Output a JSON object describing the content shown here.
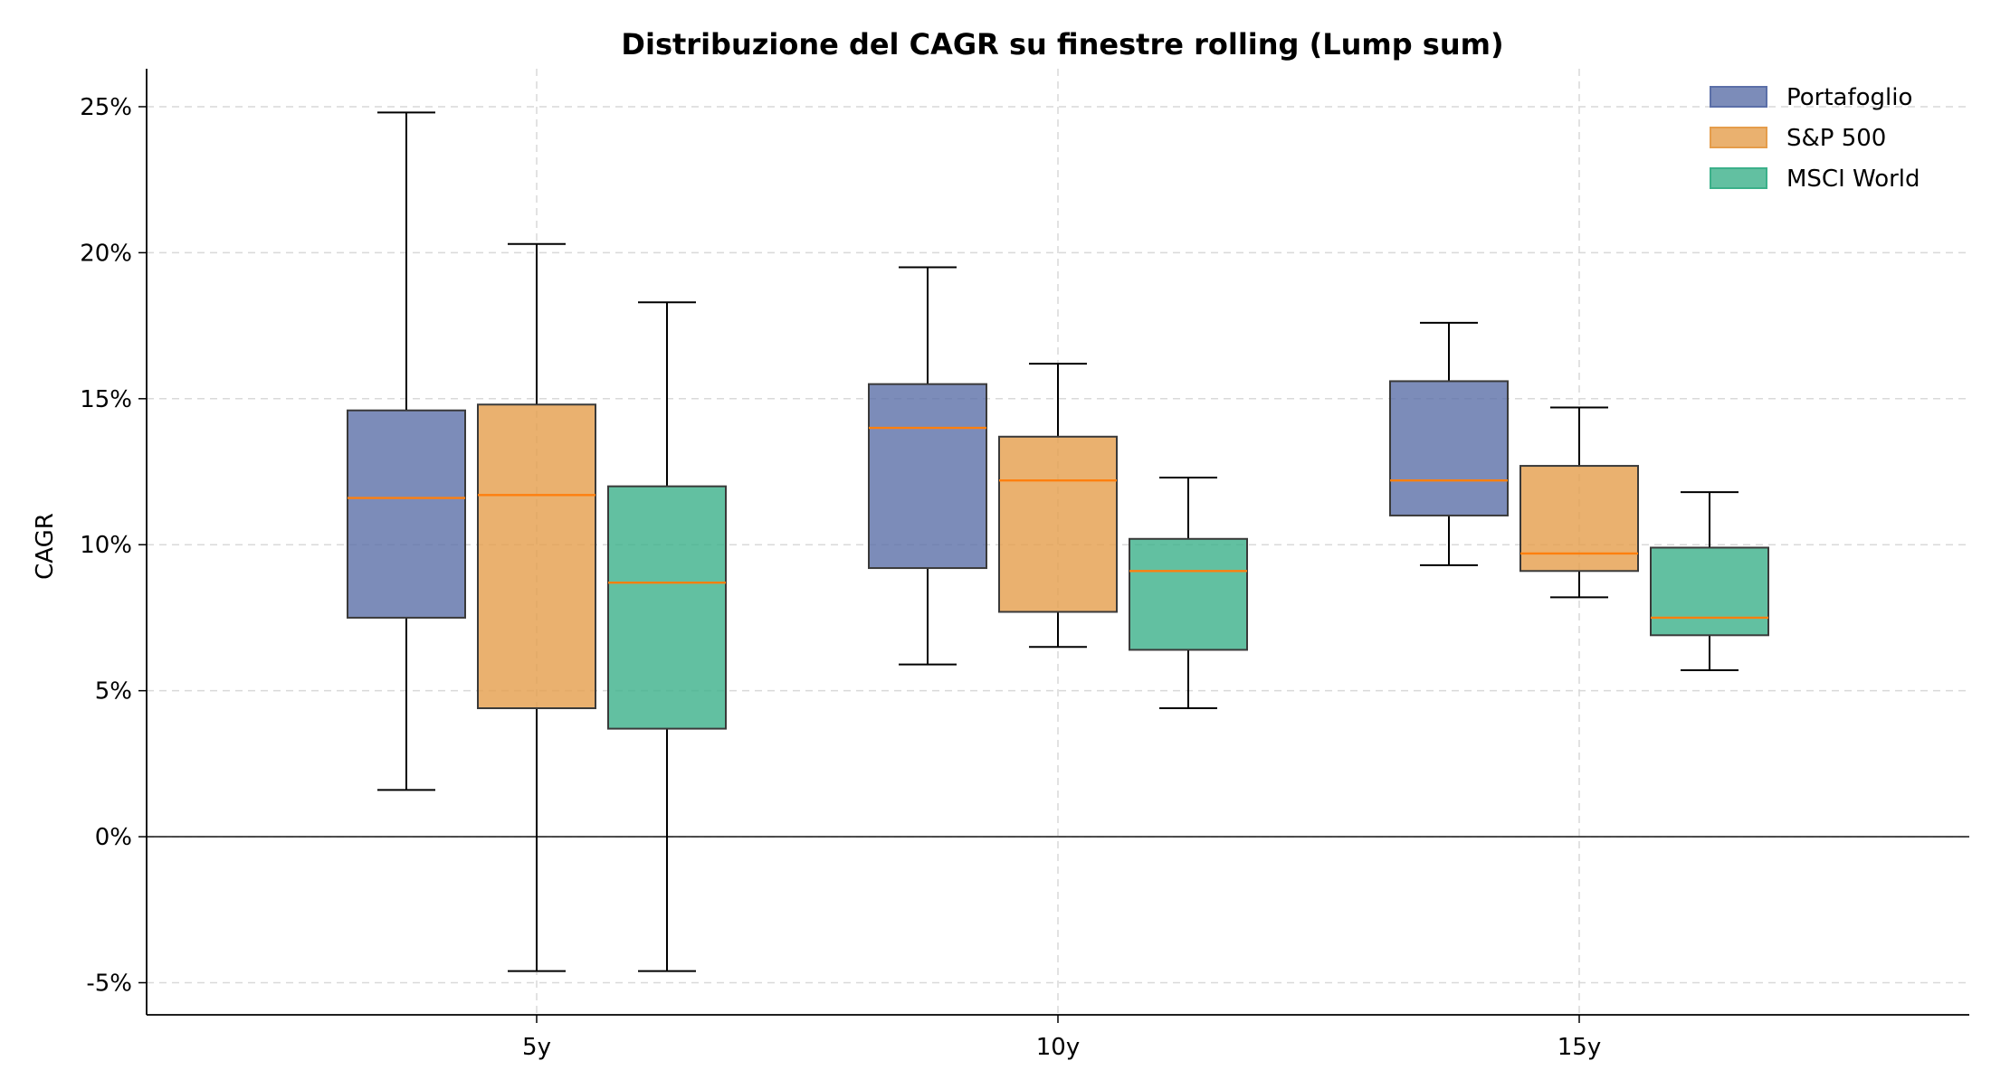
{
  "chart_data": {
    "type": "boxplot",
    "title": "Distribuzione del CAGR su finestre rolling (Lump sum)",
    "xlabel": "",
    "ylabel": "CAGR",
    "categories": [
      "5y",
      "10y",
      "15y"
    ],
    "ylim": [
      -6.1,
      26.3
    ],
    "y_ticks": [
      -5,
      0,
      5,
      10,
      15,
      20,
      25
    ],
    "y_tick_labels": [
      "-5%",
      "0%",
      "5%",
      "10%",
      "15%",
      "20%",
      "25%"
    ],
    "grid": true,
    "zero_line": true,
    "legend_position": "top-right",
    "median_color": "#ff7f0e",
    "series": [
      {
        "name": "Portafoglio",
        "color": "#5b6fa8",
        "boxes": [
          {
            "whisker_low": 1.6,
            "q1": 7.5,
            "median": 11.6,
            "q3": 14.6,
            "whisker_high": 24.8
          },
          {
            "whisker_low": 5.9,
            "q1": 9.2,
            "median": 14.0,
            "q3": 15.5,
            "whisker_high": 19.5
          },
          {
            "whisker_low": 9.3,
            "q1": 11.0,
            "median": 12.2,
            "q3": 15.6,
            "whisker_high": 17.6
          }
        ]
      },
      {
        "name": "S&P 500",
        "color": "#e59d4b",
        "boxes": [
          {
            "whisker_low": -4.6,
            "q1": 4.4,
            "median": 11.7,
            "q3": 14.8,
            "whisker_high": 20.3
          },
          {
            "whisker_low": 6.5,
            "q1": 7.7,
            "median": 12.2,
            "q3": 13.7,
            "whisker_high": 16.2
          },
          {
            "whisker_low": 8.2,
            "q1": 9.1,
            "median": 9.7,
            "q3": 12.7,
            "whisker_high": 14.7
          }
        ]
      },
      {
        "name": "MSCI World",
        "color": "#3bb08a",
        "boxes": [
          {
            "whisker_low": -4.6,
            "q1": 3.7,
            "median": 8.7,
            "q3": 12.0,
            "whisker_high": 18.3
          },
          {
            "whisker_low": 4.4,
            "q1": 6.4,
            "median": 9.1,
            "q3": 10.2,
            "whisker_high": 12.3
          },
          {
            "whisker_low": 5.7,
            "q1": 6.9,
            "median": 7.5,
            "q3": 9.9,
            "whisker_high": 11.8
          }
        ]
      }
    ]
  }
}
